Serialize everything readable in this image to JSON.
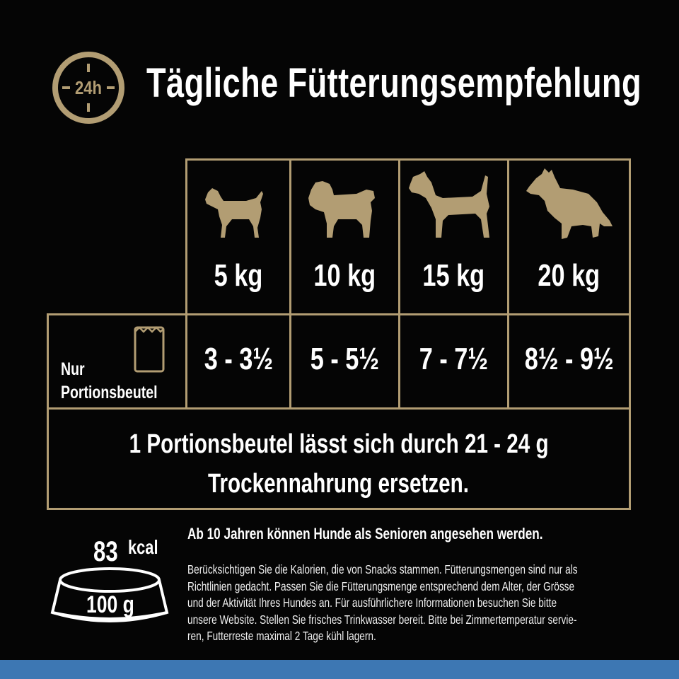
{
  "header": {
    "clock_label": "24h",
    "title": "Tägliche Fütterungsempfehlung"
  },
  "table": {
    "weights": [
      "5 kg",
      "10 kg",
      "15 kg",
      "20 kg"
    ],
    "row_label_line1": "Nur",
    "row_label_line2": "Portionsbeutel",
    "amounts": [
      "3 - 3½",
      "5 - 5½",
      "7 - 7½",
      "8½ - 9½"
    ],
    "replace_line1": "1 Portionsbeutel lässt sich durch 21 - 24 g",
    "replace_line2": "Trockennahrung ersetzen."
  },
  "nutrition": {
    "kcal_value": "83",
    "kcal_unit": "kcal",
    "grams": "100 g"
  },
  "info": {
    "senior": "Ab 10 Jahren können Hunde als Senioren angesehen werden.",
    "notes_lines": [
      "Berücksichtigen Sie die Kalorien, die von Snacks stammen. Fütterungsmengen sind nur als",
      "Richtlinien gedacht. Passen Sie die Fütterungsmenge entsprechend dem Alter, der Grösse",
      "und der Aktivität Ihres Hundes an. Für ausführlichere Informationen besuchen Sie bitte",
      "unsere Website. Stellen Sie frisches Trinkwasser bereit. Bitte bei Zimmertemperatur servie-",
      "ren, Futterreste maximal 2 Tage kühl lagern."
    ]
  },
  "colors": {
    "background": "#050505",
    "gold": "#b29d73",
    "text": "#ffffff",
    "band": "#3d77b3"
  },
  "icons": [
    "clock-24h-icon",
    "small-dog-icon",
    "pug-dog-icon",
    "terrier-dog-icon",
    "collie-dog-icon",
    "pouch-icon",
    "bowl-icon"
  ]
}
